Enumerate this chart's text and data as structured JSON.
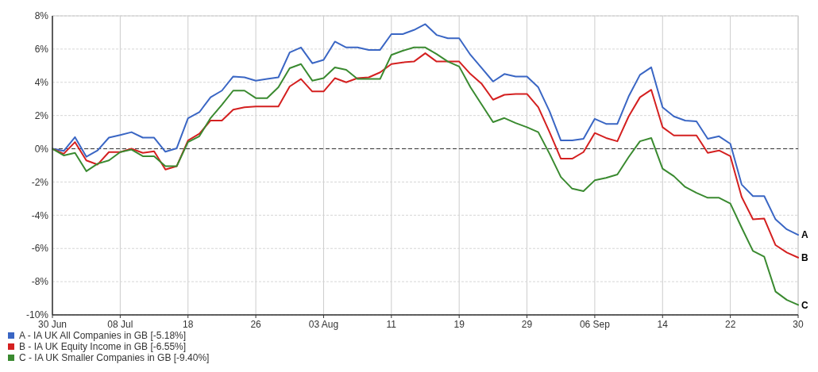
{
  "chart_data": {
    "type": "line",
    "categories": [
      "30 Jun",
      null,
      null,
      null,
      null,
      null,
      "08 Jul",
      null,
      null,
      null,
      null,
      null,
      "18",
      null,
      null,
      null,
      null,
      null,
      "26",
      null,
      null,
      null,
      null,
      null,
      "03 Aug",
      null,
      null,
      null,
      null,
      null,
      "11",
      null,
      null,
      null,
      null,
      null,
      "19",
      null,
      null,
      null,
      null,
      null,
      "29",
      null,
      null,
      null,
      null,
      null,
      "06 Sep",
      null,
      null,
      null,
      null,
      null,
      "14",
      null,
      null,
      null,
      null,
      null,
      "22",
      null,
      null,
      null,
      null,
      null,
      "30"
    ],
    "series": [
      {
        "name": "A - IA UK All Companies in GB [-5.18%]",
        "color": "#3a66c4",
        "values": [
          0,
          -0.13,
          0.7,
          -0.48,
          -0.1,
          0.67,
          0.83,
          1.0,
          0.67,
          0.67,
          -0.18,
          0.03,
          1.83,
          2.2,
          3.1,
          3.5,
          4.35,
          4.3,
          4.1,
          4.2,
          4.3,
          5.8,
          6.1,
          5.15,
          5.35,
          6.45,
          6.1,
          6.1,
          5.95,
          5.95,
          6.9,
          6.9,
          7.15,
          7.5,
          6.85,
          6.65,
          6.65,
          5.65,
          4.85,
          4.05,
          4.5,
          4.35,
          4.35,
          3.7,
          2.25,
          0.5,
          0.5,
          0.6,
          1.8,
          1.5,
          1.5,
          3.15,
          4.45,
          4.9,
          2.5,
          1.95,
          1.7,
          1.65,
          0.6,
          0.75,
          0.3,
          -2.15,
          -2.85,
          -2.85,
          -4.25,
          -4.85,
          -5.18
        ]
      },
      {
        "name": "B - IA UK Equity Income in GB [-6.55%]",
        "color": "#d42020",
        "values": [
          0,
          -0.3,
          0.4,
          -0.7,
          -0.95,
          -0.2,
          -0.2,
          0,
          -0.25,
          -0.15,
          -1.25,
          -1.05,
          0.5,
          0.9,
          1.7,
          1.7,
          2.35,
          2.5,
          2.55,
          2.55,
          2.55,
          3.75,
          4.2,
          3.45,
          3.45,
          4.25,
          4.0,
          4.25,
          4.3,
          4.6,
          5.1,
          5.2,
          5.25,
          5.75,
          5.25,
          5.25,
          5.25,
          4.5,
          3.9,
          2.95,
          3.25,
          3.3,
          3.3,
          2.5,
          1.0,
          -0.6,
          -0.6,
          -0.2,
          0.95,
          0.65,
          0.45,
          1.95,
          3.1,
          3.55,
          1.3,
          0.8,
          0.8,
          0.8,
          -0.25,
          -0.1,
          -0.45,
          -2.9,
          -4.25,
          -4.2,
          -5.8,
          -6.25,
          -6.55
        ]
      },
      {
        "name": "C - IA UK Smaller Companies in GB [-9.40%]",
        "color": "#3a8a30",
        "values": [
          0,
          -0.4,
          -0.25,
          -1.35,
          -0.9,
          -0.7,
          -0.2,
          -0.05,
          -0.45,
          -0.45,
          -1.05,
          -1.05,
          0.4,
          0.75,
          1.85,
          2.65,
          3.5,
          3.5,
          3.05,
          3.05,
          3.7,
          4.85,
          5.1,
          4.1,
          4.25,
          4.9,
          4.75,
          4.2,
          4.2,
          4.2,
          5.65,
          5.9,
          6.1,
          6.1,
          5.7,
          5.25,
          4.95,
          3.7,
          2.65,
          1.6,
          1.85,
          1.55,
          1.3,
          1.0,
          -0.3,
          -1.7,
          -2.4,
          -2.55,
          -1.9,
          -1.75,
          -1.55,
          -0.5,
          0.45,
          0.65,
          -1.2,
          -1.65,
          -2.3,
          -2.65,
          -2.95,
          -2.95,
          -3.3,
          -4.75,
          -6.15,
          -6.5,
          -8.6,
          -9.1,
          -9.4
        ]
      }
    ],
    "ylim": [
      -10,
      8
    ],
    "yticks": [
      {
        "value": -10,
        "label": "-10%"
      },
      {
        "value": -8,
        "label": "-8%"
      },
      {
        "value": -6,
        "label": "-6%"
      },
      {
        "value": -4,
        "label": "-4%"
      },
      {
        "value": -2,
        "label": "-2%"
      },
      {
        "value": 0,
        "label": "0%"
      },
      {
        "value": 2,
        "label": "2%"
      },
      {
        "value": 4,
        "label": "4%"
      },
      {
        "value": 6,
        "label": "6%"
      },
      {
        "value": 8,
        "label": "8%"
      }
    ],
    "ref_lines": [
      {
        "axis": "y",
        "value": 0,
        "color": "#333333",
        "line_style": "dashed"
      }
    ],
    "annotations": [
      {
        "text": "A",
        "x": "30",
        "y": -5.18
      },
      {
        "text": "B",
        "x": "30",
        "y": -6.55
      },
      {
        "text": "C",
        "x": "30",
        "y": -9.4
      }
    ],
    "grid": true,
    "legend": "bottom",
    "marker": "none",
    "line_style": "solid"
  }
}
